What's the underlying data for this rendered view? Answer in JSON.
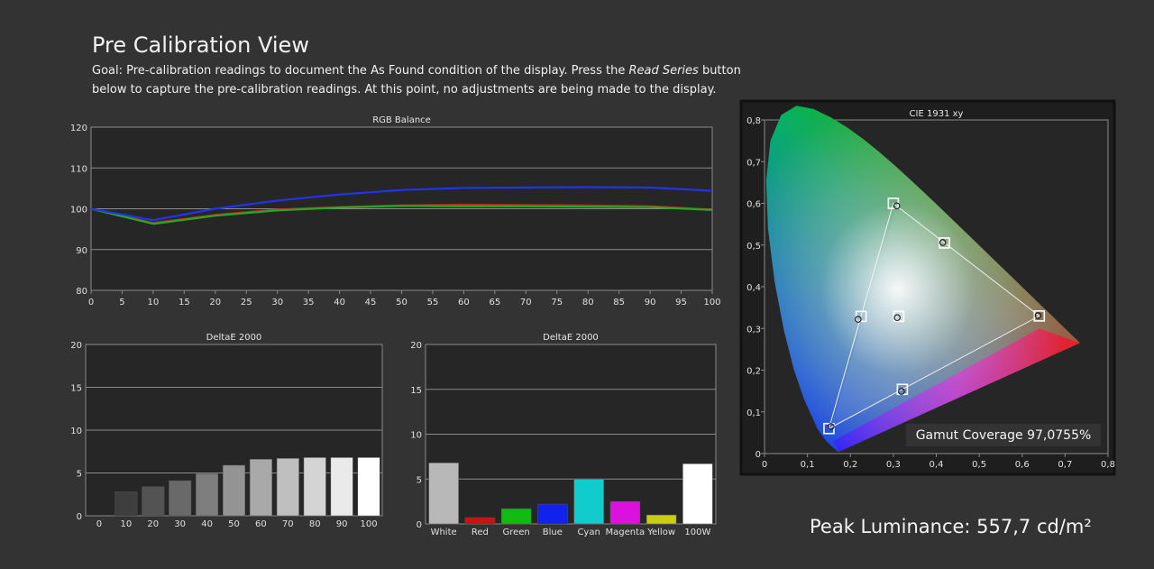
{
  "page": {
    "title": "Pre Calibration View",
    "goal_prefix": "Goal: Pre-calibration readings to document the As Found condition of the display. Press the ",
    "goal_em": "Read Series",
    "goal_suffix": " button below to capture the pre-calibration readings. At this point, no adjustments are being made to the display.",
    "peak_luminance": "Peak Luminance: 557,7 cd/m²"
  },
  "colors": {
    "background": "#333333",
    "plot_bg": "#262626",
    "grid": "#8a8a8a"
  },
  "chart_data": [
    {
      "id": "rgb",
      "type": "line",
      "title": "RGB Balance",
      "x": [
        0,
        10,
        20,
        30,
        40,
        50,
        60,
        70,
        80,
        90,
        100
      ],
      "xticks": [
        0,
        5,
        10,
        15,
        20,
        25,
        30,
        35,
        40,
        45,
        50,
        55,
        60,
        65,
        70,
        75,
        80,
        85,
        90,
        95,
        100
      ],
      "ylim": [
        80,
        120
      ],
      "yticks": [
        80,
        90,
        100,
        110,
        120
      ],
      "series": [
        {
          "color": "#cc2222",
          "values": [
            100,
            96.5,
            98.5,
            99.8,
            100.4,
            100.8,
            101.0,
            100.9,
            100.8,
            100.6,
            99.8
          ]
        },
        {
          "color": "#22aa22",
          "values": [
            100,
            96.3,
            98.3,
            99.6,
            100.3,
            100.7,
            100.6,
            100.6,
            100.5,
            100.4,
            99.7
          ]
        },
        {
          "color": "#2233ee",
          "values": [
            100,
            97.2,
            100.0,
            102.0,
            103.5,
            104.6,
            105.1,
            105.2,
            105.3,
            105.2,
            104.4
          ]
        }
      ]
    },
    {
      "id": "gray",
      "type": "bar",
      "title": "DeltaE 2000",
      "categories": [
        "0",
        "10",
        "20",
        "30",
        "40",
        "50",
        "60",
        "70",
        "80",
        "90",
        "100"
      ],
      "values": [
        0,
        2.8,
        3.4,
        4.1,
        4.9,
        5.9,
        6.6,
        6.7,
        6.8,
        6.8,
        6.8
      ],
      "ylim": [
        0,
        20
      ],
      "yticks": [
        0,
        5,
        10,
        15,
        20
      ]
    },
    {
      "id": "colors",
      "type": "bar",
      "title": "DeltaE 2000",
      "categories": [
        "White",
        "Red",
        "Green",
        "Blue",
        "Cyan",
        "Magenta",
        "Yellow",
        "100W"
      ],
      "values": [
        6.8,
        0.7,
        1.7,
        2.2,
        5.0,
        2.5,
        1.0,
        6.7
      ],
      "bar_colors": [
        "#b8b8b8",
        "#cc1111",
        "#11bb11",
        "#1122ee",
        "#11cccc",
        "#dd11dd",
        "#cccc11",
        "#ffffff"
      ],
      "ylim": [
        0,
        20
      ],
      "yticks": [
        0,
        5,
        10,
        15,
        20
      ]
    },
    {
      "id": "cie",
      "type": "scatter",
      "title": "CIE 1931 xy",
      "xlim": [
        0,
        0.8
      ],
      "ylim": [
        0,
        0.8
      ],
      "xticks": [
        "0",
        "0,1",
        "0,2",
        "0,3",
        "0,4",
        "0,5",
        "0,6",
        "0,7",
        "0,8"
      ],
      "yticks": [
        "0",
        "0,1",
        "0,2",
        "0,3",
        "0,4",
        "0,5",
        "0,6",
        "0,7",
        "0,8"
      ],
      "targets": [
        [
          0.64,
          0.33
        ],
        [
          0.3,
          0.6
        ],
        [
          0.15,
          0.06
        ],
        [
          0.225,
          0.329
        ],
        [
          0.321,
          0.154
        ],
        [
          0.419,
          0.505
        ],
        [
          0.3127,
          0.329
        ]
      ],
      "measured": [
        [
          0.637,
          0.331
        ],
        [
          0.308,
          0.594
        ],
        [
          0.155,
          0.065
        ],
        [
          0.218,
          0.322
        ],
        [
          0.319,
          0.149
        ],
        [
          0.415,
          0.506
        ],
        [
          0.309,
          0.326
        ]
      ],
      "gamut_coverage": "Gamut Coverage 97,0755%"
    }
  ]
}
